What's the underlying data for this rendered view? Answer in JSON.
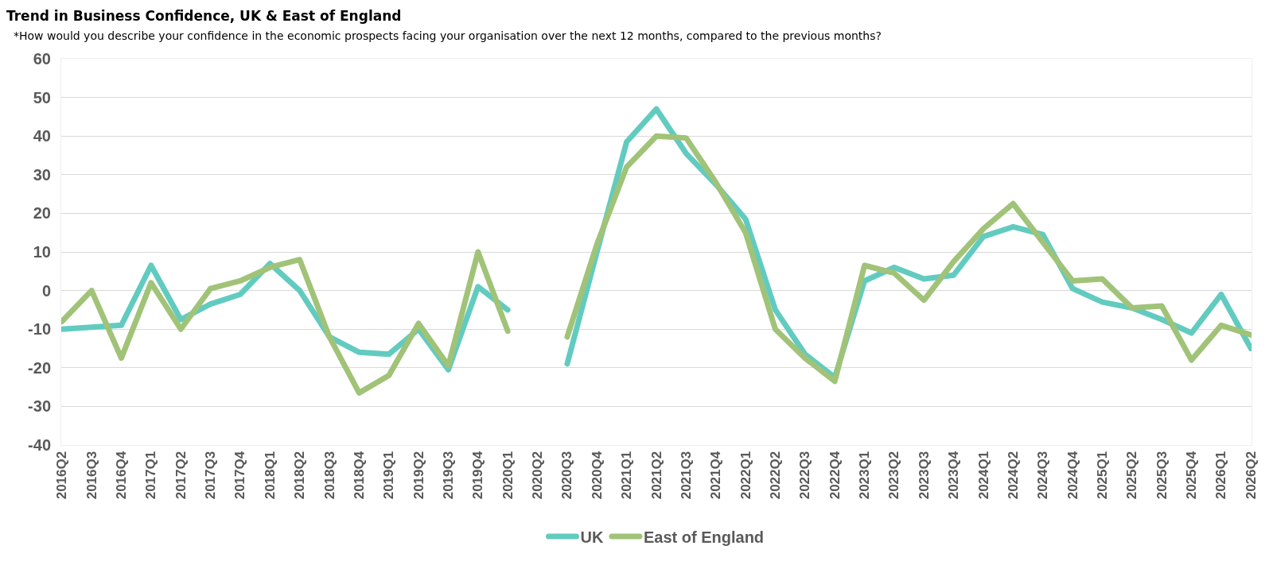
{
  "chart_data": {
    "type": "line",
    "title": "Trend in Business Confidence, UK & East of England",
    "subtitle": "*How would you describe your confidence in the economic prospects facing your organisation over the next 12 months, compared to the previous months?",
    "categories": [
      "2016Q2",
      "2016Q3",
      "2016Q4",
      "2017Q1",
      "2017Q2",
      "2017Q3",
      "2017Q4",
      "2018Q1",
      "2018Q2",
      "2018Q3",
      "2018Q4",
      "2019Q1",
      "2019Q2",
      "2019Q3",
      "2019Q4",
      "2020Q1",
      "2020Q2",
      "2020Q3",
      "2020Q4",
      "2021Q1",
      "2021Q2",
      "2021Q3",
      "2021Q4",
      "2022Q1",
      "2022Q2",
      "2022Q3",
      "2022Q4",
      "2023Q1",
      "2023Q2",
      "2023Q3",
      "2023Q4",
      "2024Q1",
      "2024Q2",
      "2024Q3",
      "2024Q4",
      "2025Q1",
      "2025Q2",
      "2025Q3",
      "2025Q4",
      "2026Q1",
      "2026Q2"
    ],
    "series": [
      {
        "name": "UK",
        "color": "#62cbc0",
        "values": [
          -10,
          -9.5,
          -9,
          6.5,
          -7.5,
          -3.5,
          -1,
          7,
          0,
          -12,
          -16,
          -16.5,
          -10,
          -20.5,
          1,
          -5,
          null,
          -19,
          10,
          38.5,
          47,
          35.5,
          27.5,
          18.5,
          -5,
          -16.5,
          -22.5,
          2.5,
          6,
          3,
          4,
          14,
          16.5,
          14.5,
          0.5,
          -3,
          -4.5,
          -7.5,
          -11,
          -1,
          -15
        ]
      },
      {
        "name": "East of England",
        "color": "#a0c378",
        "values": [
          -8,
          0,
          -17.5,
          2,
          -10,
          0.5,
          2.5,
          6,
          8,
          -12,
          -26.5,
          -22,
          -8.5,
          -19.5,
          10,
          -10.5,
          null,
          -12,
          12,
          32,
          40,
          39.5,
          28,
          15,
          -10,
          -17.5,
          -23.5,
          6.5,
          4.5,
          -2.5,
          7.5,
          16,
          22.5,
          12.5,
          2.5,
          3,
          -4.5,
          -4,
          -18,
          -9,
          -11.5
        ]
      }
    ],
    "ylim": [
      -40,
      60
    ],
    "yticks": [
      -40,
      -30,
      -20,
      -10,
      0,
      10,
      20,
      30,
      40,
      50,
      60
    ],
    "grid": "y",
    "legend": "bottom",
    "line_style": "solid"
  }
}
